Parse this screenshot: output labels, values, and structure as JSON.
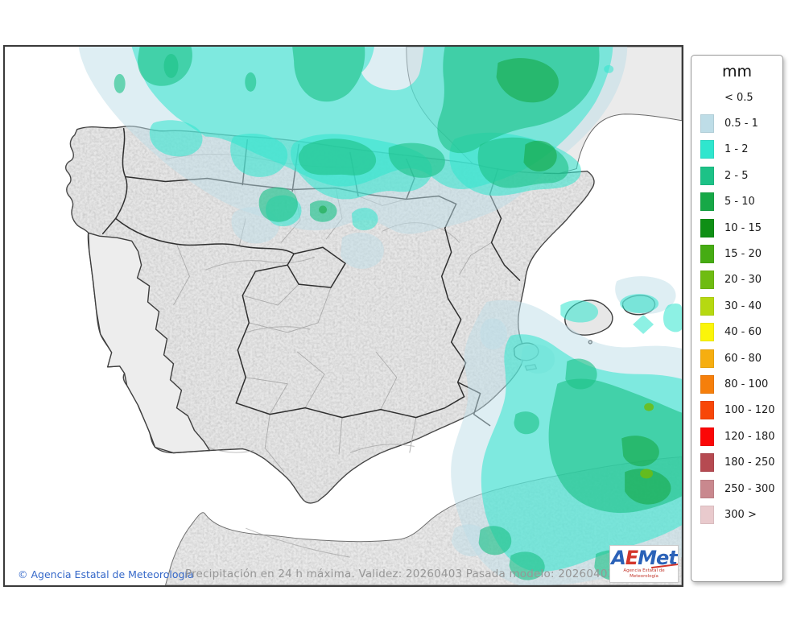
{
  "legend": {
    "title": "mm",
    "entries": [
      {
        "label": "< 0.5",
        "color": null
      },
      {
        "label": "0.5 - 1",
        "color": "#BEDDE7"
      },
      {
        "label": "1 - 2",
        "color": "#2FE6CE"
      },
      {
        "label": "2 - 5",
        "color": "#1DC287"
      },
      {
        "label": "5 - 10",
        "color": "#17A847"
      },
      {
        "label": "10 - 15",
        "color": "#0F8F15"
      },
      {
        "label": "15 - 20",
        "color": "#46AC13"
      },
      {
        "label": "20 - 30",
        "color": "#6FBC12"
      },
      {
        "label": "30 - 40",
        "color": "#B6D911"
      },
      {
        "label": "40 - 60",
        "color": "#FBF50A"
      },
      {
        "label": "60 - 80",
        "color": "#F6AE10"
      },
      {
        "label": "80 - 100",
        "color": "#F67F0B"
      },
      {
        "label": "100 - 120",
        "color": "#F84708"
      },
      {
        "label": "120 - 180",
        "color": "#FB0707"
      },
      {
        "label": "180 - 250",
        "color": "#B64A51"
      },
      {
        "label": "250 - 300",
        "color": "#C9888E"
      },
      {
        "label": "300 >",
        "color": "#E9CACD"
      }
    ]
  },
  "footer": {
    "copyright": "© Agencia Estatal de Meteorología",
    "model_info": "Precipitación en 24 h máxima. Validez: 20260403 Pasada modelo: 2026040300"
  },
  "logo": {
    "a": "A",
    "e": "E",
    "met": "Met",
    "subtitle": "Agencia Estatal de Meteorología"
  },
  "map": {
    "description": "Maximum 24 h precipitation over the Iberian Peninsula, Balearic Islands, southern France and northern Morocco",
    "units": "mm",
    "colors": {
      "sea": "#FFFFFF",
      "spain_land": "#E7E7E7",
      "portugal_land": "#EDEDED",
      "france_land": "#EBEBEB",
      "africa_land": "#EAEAEA"
    }
  }
}
